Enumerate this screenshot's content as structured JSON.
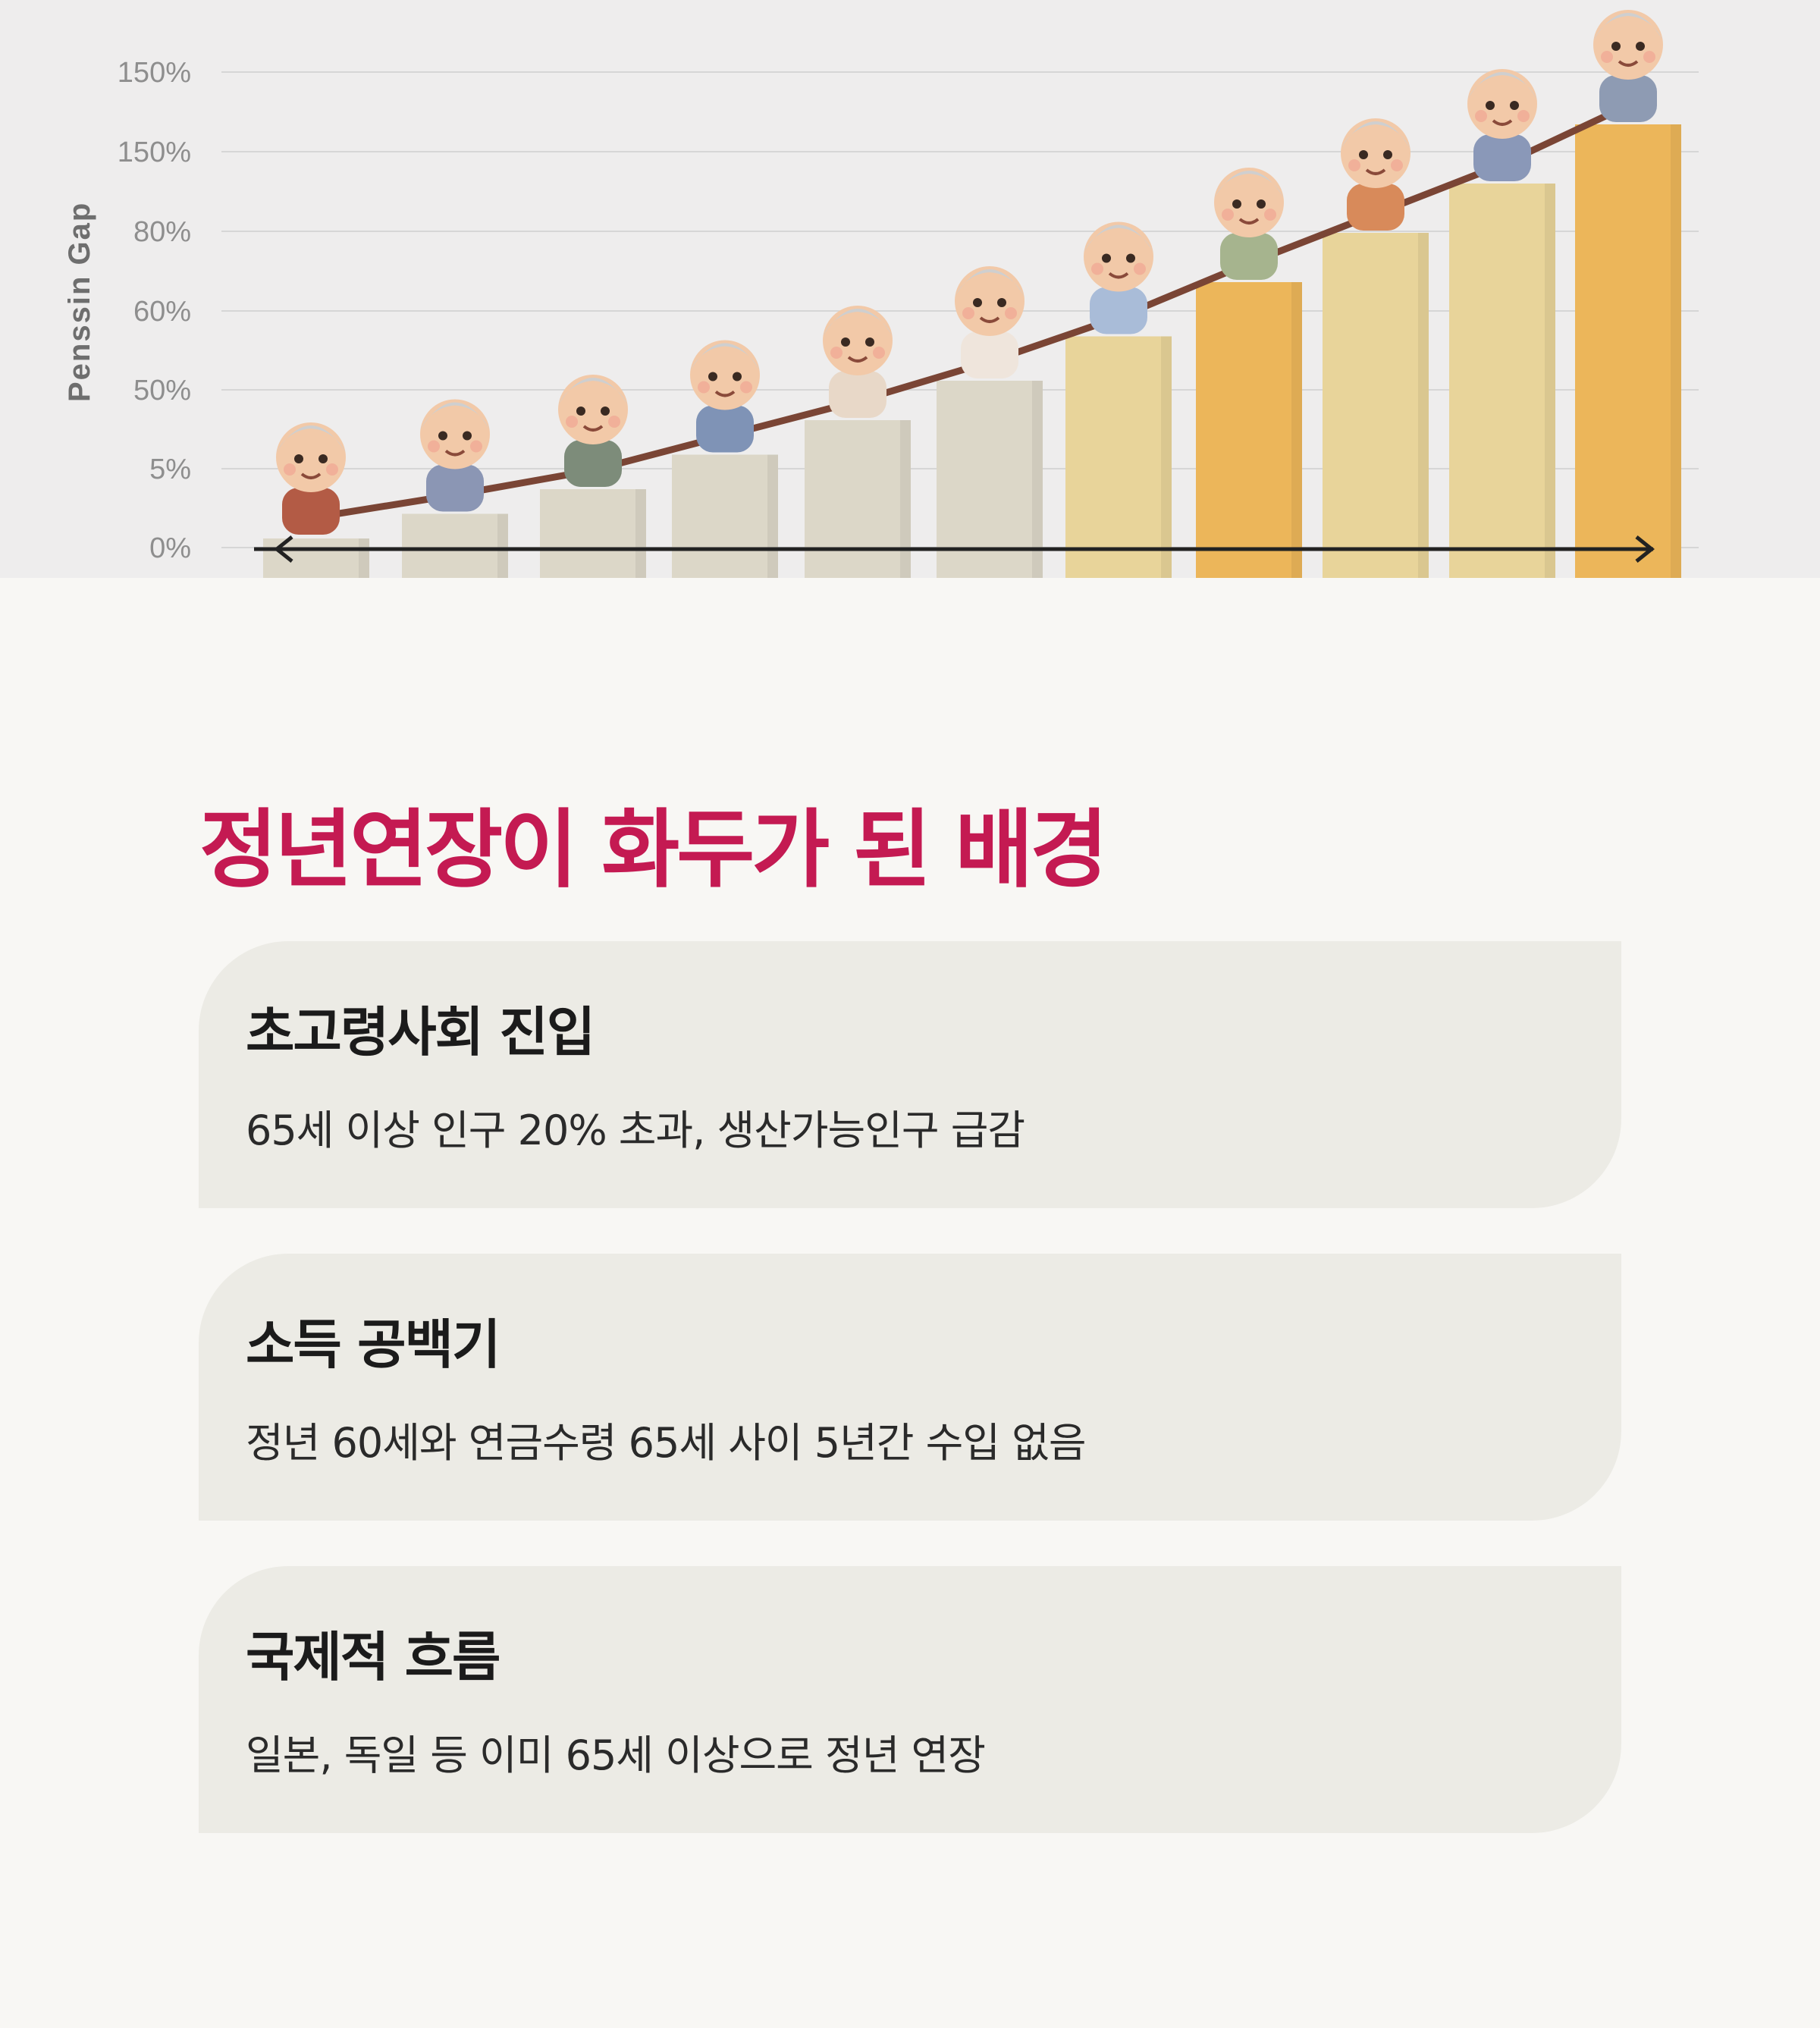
{
  "hero": {
    "axis_title": "Penssin Gap",
    "y_ticks": [
      "150%",
      "150%",
      "80%",
      "60%",
      "50%",
      "5%",
      "0%"
    ],
    "colors": {
      "bar_neutral": "#dcd7c8",
      "bar_light_gold": "#e8d49a",
      "bar_gold": "#ecb65a",
      "trend_line": "#7a4535",
      "axis_arrow": "#222222"
    },
    "bar_levels": [
      0.08,
      0.13,
      0.18,
      0.25,
      0.32,
      0.4,
      0.49,
      0.6,
      0.7,
      0.8,
      0.92
    ],
    "figure_icon": "elderly-person-figure"
  },
  "section": {
    "title": "정년연장이 화두가 된 배경",
    "title_color": "#c41a52"
  },
  "cards": [
    {
      "title": "초고령사회 진입",
      "body": "65세 이상 인구 20% 초과, 생산가능인구 급감"
    },
    {
      "title": "소득 공백기",
      "body": "정년 60세와 연금수령 65세 사이 5년간 수입 없음"
    },
    {
      "title": "국제적 흐름",
      "body": "일본, 독일 등 이미 65세 이상으로 정년 연장"
    }
  ]
}
